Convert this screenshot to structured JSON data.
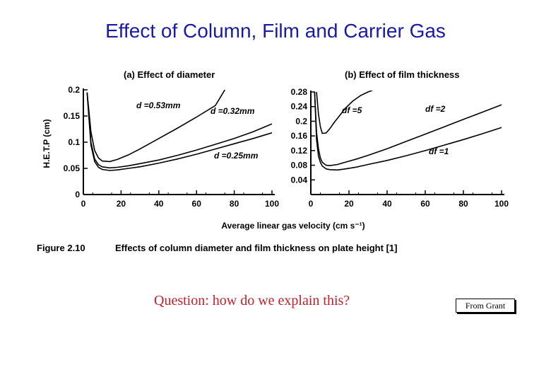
{
  "slide": {
    "title": "Effect of Column, Film and Carrier Gas",
    "question": "Question: how do we explain this?",
    "source": "From Grant"
  },
  "figure": {
    "label": "Figure 2.10",
    "caption": "Effects of column diameter and film thickness on plate height [1]",
    "shared_xlabel": "Average linear gas velocity (cm s⁻¹)"
  },
  "chart_data": [
    {
      "type": "line",
      "title": "(a) Effect of diameter",
      "ylabel": "H.E.T.P (cm)",
      "xlim": [
        0,
        100
      ],
      "ylim": [
        0,
        0.2
      ],
      "x_ticks": [
        "0",
        "20",
        "40",
        "60",
        "80",
        "100"
      ],
      "y_ticks": [
        "0",
        "0.05",
        "0.1",
        "0.15",
        "0.2"
      ],
      "x_tick_values": [
        0,
        20,
        40,
        60,
        80,
        100
      ],
      "y_tick_values": [
        0,
        0.05,
        0.1,
        0.15,
        0.2
      ],
      "series": [
        {
          "name": "d =0.53mm",
          "x": [
            2,
            4,
            6,
            8,
            10,
            14,
            18,
            24,
            30,
            40,
            50,
            60,
            70,
            75
          ],
          "y": [
            0.195,
            0.12,
            0.084,
            0.07,
            0.064,
            0.063,
            0.067,
            0.076,
            0.087,
            0.107,
            0.127,
            0.148,
            0.17,
            0.2
          ]
        },
        {
          "name": "d =0.32mm",
          "x": [
            2,
            4,
            6,
            8,
            10,
            14,
            18,
            24,
            30,
            40,
            50,
            60,
            70,
            80,
            90,
            100
          ],
          "y": [
            0.195,
            0.1,
            0.068,
            0.057,
            0.053,
            0.051,
            0.052,
            0.055,
            0.059,
            0.066,
            0.075,
            0.085,
            0.096,
            0.107,
            0.12,
            0.135
          ]
        },
        {
          "name": "d =0.25mm",
          "x": [
            2,
            4,
            6,
            8,
            10,
            14,
            18,
            24,
            30,
            40,
            50,
            60,
            70,
            80,
            90,
            100
          ],
          "y": [
            0.195,
            0.095,
            0.063,
            0.052,
            0.048,
            0.046,
            0.047,
            0.05,
            0.053,
            0.06,
            0.068,
            0.077,
            0.087,
            0.097,
            0.107,
            0.118
          ]
        }
      ]
    },
    {
      "type": "line",
      "title": "(b) Effect of film thickness",
      "ylabel": "",
      "xlim": [
        0,
        100
      ],
      "ylim": [
        0,
        0.28
      ],
      "x_ticks": [
        "0",
        "20",
        "40",
        "60",
        "80",
        "100"
      ],
      "y_ticks": [
        "0.04",
        "0.08",
        "0.12",
        "0.16",
        "0.2",
        "0.24",
        "0.28"
      ],
      "x_tick_values": [
        0,
        20,
        40,
        60,
        80,
        100
      ],
      "y_tick_values": [
        0.04,
        0.08,
        0.12,
        0.16,
        0.2,
        0.24,
        0.28
      ],
      "series": [
        {
          "name": "df =5",
          "x": [
            3,
            4,
            5,
            6,
            8,
            10,
            12,
            15,
            18,
            22,
            26,
            30,
            35
          ],
          "y": [
            0.28,
            0.22,
            0.185,
            0.167,
            0.168,
            0.18,
            0.195,
            0.215,
            0.235,
            0.255,
            0.27,
            0.28,
            0.29
          ]
        },
        {
          "name": "df =2",
          "x": [
            2,
            3,
            4,
            5,
            6,
            8,
            10,
            14,
            18,
            24,
            30,
            40,
            50,
            60,
            70,
            80,
            90,
            100
          ],
          "y": [
            0.28,
            0.17,
            0.125,
            0.1,
            0.088,
            0.08,
            0.079,
            0.082,
            0.088,
            0.097,
            0.107,
            0.125,
            0.145,
            0.165,
            0.185,
            0.205,
            0.225,
            0.245
          ]
        },
        {
          "name": "df =1",
          "x": [
            2,
            3,
            4,
            5,
            6,
            8,
            10,
            14,
            18,
            24,
            30,
            40,
            50,
            60,
            70,
            80,
            90,
            100
          ],
          "y": [
            0.28,
            0.15,
            0.105,
            0.088,
            0.078,
            0.07,
            0.068,
            0.067,
            0.07,
            0.075,
            0.082,
            0.093,
            0.106,
            0.12,
            0.135,
            0.15,
            0.166,
            0.183
          ]
        }
      ]
    }
  ]
}
